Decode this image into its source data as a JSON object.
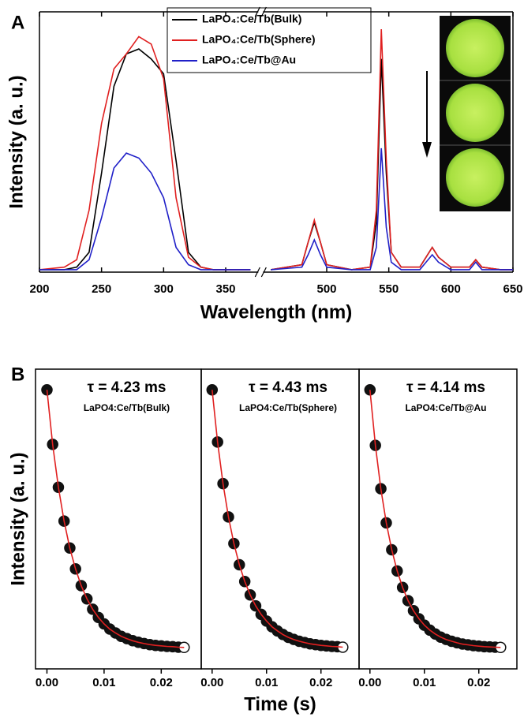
{
  "chart_data": [
    {
      "type": "line",
      "panel_label": "A",
      "x_label": "Wavelength (nm)",
      "y_label": "Intensity (a. u.)",
      "xlim": [
        200,
        650
      ],
      "xbreak": [
        375,
        450
      ],
      "xticks": [
        200,
        250,
        300,
        350,
        500,
        550,
        600,
        650
      ],
      "ylim": [
        0,
        105
      ],
      "x": [
        200,
        220,
        230,
        240,
        250,
        260,
        270,
        280,
        290,
        300,
        310,
        320,
        330,
        340,
        360,
        370,
        455,
        480,
        485,
        490,
        495,
        500,
        520,
        535,
        540,
        544,
        548,
        552,
        560,
        575,
        580,
        585,
        590,
        600,
        615,
        620,
        625,
        640,
        650
      ],
      "series": [
        {
          "name": "LaPO₄:Ce/Tb(Bulk)",
          "color": "#000000",
          "values": [
            1,
            1,
            2,
            8,
            40,
            75,
            88,
            90,
            86,
            80,
            45,
            8,
            2,
            1,
            1,
            1,
            1,
            3,
            12,
            20,
            12,
            3,
            1,
            2,
            20,
            86,
            40,
            8,
            2,
            2,
            6,
            10,
            6,
            2,
            2,
            5,
            2,
            1,
            1
          ]
        },
        {
          "name": "LaPO₄:Ce/Tb(Sphere)",
          "color": "#e02020",
          "values": [
            1,
            2,
            5,
            25,
            60,
            82,
            88,
            95,
            92,
            78,
            30,
            6,
            2,
            1,
            1,
            1,
            1,
            3,
            12,
            21,
            12,
            3,
            1,
            2,
            25,
            98,
            45,
            8,
            2,
            2,
            6,
            10,
            6,
            2,
            2,
            5,
            2,
            1,
            1
          ]
        },
        {
          "name": "LaPO₄:Ce/Tb@Au",
          "color": "#2020c8",
          "values": [
            1,
            1,
            1,
            5,
            22,
            42,
            48,
            46,
            40,
            30,
            10,
            3,
            1,
            1,
            1,
            1,
            1,
            2,
            7,
            13,
            7,
            2,
            1,
            1,
            10,
            50,
            18,
            4,
            1,
            1,
            4,
            7,
            4,
            1,
            1,
            4,
            1,
            1,
            1
          ]
        }
      ]
    },
    {
      "type": "scatter",
      "panel_label": "B",
      "y_label": "Intensity (a. u.)",
      "annotation": "τ = 4.23 ms",
      "sample": "LaPO4:Ce/Tb(Bulk)",
      "xlim": [
        -0.002,
        0.027
      ],
      "xticks": [
        {
          "value": 0,
          "label": "0.00"
        },
        {
          "value": 0.01,
          "label": "0.01"
        },
        {
          "value": 0.02,
          "label": "0.02"
        }
      ],
      "ylim": [
        -8,
        108
      ],
      "x": [
        0,
        0.001,
        0.002,
        0.003,
        0.004,
        0.005,
        0.006,
        0.007,
        0.008,
        0.009,
        0.01,
        0.011,
        0.012,
        0.013,
        0.014,
        0.015,
        0.016,
        0.017,
        0.018,
        0.019,
        0.02,
        0.021,
        0.022,
        0.023,
        0.024
      ],
      "series": [
        {
          "type": "scatter",
          "color": "#111111",
          "values": [
            100,
            78.9,
            62.3,
            49.2,
            38.8,
            30.7,
            24.2,
            19.1,
            15.1,
            11.9,
            9.4,
            7.4,
            5.9,
            4.6,
            3.7,
            2.9,
            2.3,
            1.8,
            1.4,
            1.1,
            0.9,
            0.7,
            0.6,
            0.4,
            0.3
          ]
        },
        {
          "type": "line",
          "color": "#e02020",
          "values": [
            100,
            78.9,
            62.3,
            49.2,
            38.8,
            30.7,
            24.2,
            19.1,
            15.1,
            11.9,
            9.4,
            7.4,
            5.9,
            4.6,
            3.7,
            2.9,
            2.3,
            1.8,
            1.4,
            1.1,
            0.9,
            0.7,
            0.6,
            0.4,
            0.3
          ]
        }
      ]
    },
    {
      "type": "scatter",
      "x_label": "Time (s)",
      "annotation": "τ = 4.43 ms",
      "sample": "LaPO4:Ce/Tb(Sphere)",
      "xlim": [
        -0.002,
        0.027
      ],
      "xticks": [
        {
          "value": 0,
          "label": "0.00"
        },
        {
          "value": 0.01,
          "label": "0.01"
        },
        {
          "value": 0.02,
          "label": "0.02"
        }
      ],
      "ylim": [
        -8,
        108
      ],
      "x": [
        0,
        0.001,
        0.002,
        0.003,
        0.004,
        0.005,
        0.006,
        0.007,
        0.008,
        0.009,
        0.01,
        0.011,
        0.012,
        0.013,
        0.014,
        0.015,
        0.016,
        0.017,
        0.018,
        0.019,
        0.02,
        0.021,
        0.022,
        0.023,
        0.024
      ],
      "series": [
        {
          "type": "scatter",
          "color": "#111111",
          "values": [
            100,
            79.8,
            63.7,
            50.8,
            40.5,
            32.3,
            25.8,
            20.6,
            16.4,
            13.1,
            10.5,
            8.3,
            6.7,
            5.3,
            4.2,
            3.4,
            2.7,
            2.2,
            1.7,
            1.4,
            1.1,
            0.9,
            0.7,
            0.6,
            0.4
          ]
        },
        {
          "type": "line",
          "color": "#e02020",
          "values": [
            100,
            79.8,
            63.7,
            50.8,
            40.5,
            32.3,
            25.8,
            20.6,
            16.4,
            13.1,
            10.5,
            8.3,
            6.7,
            5.3,
            4.2,
            3.4,
            2.7,
            2.2,
            1.7,
            1.4,
            1.1,
            0.9,
            0.7,
            0.6,
            0.4
          ]
        }
      ]
    },
    {
      "type": "scatter",
      "annotation": "τ = 4.14 ms",
      "sample": "LaPO4:Ce/Tb@Au",
      "xlim": [
        -0.002,
        0.027
      ],
      "xticks": [
        {
          "value": 0,
          "label": "0.00"
        },
        {
          "value": 0.01,
          "label": "0.01"
        },
        {
          "value": 0.02,
          "label": "0.02"
        }
      ],
      "ylim": [
        -8,
        108
      ],
      "x": [
        0,
        0.001,
        0.002,
        0.003,
        0.004,
        0.005,
        0.006,
        0.007,
        0.008,
        0.009,
        0.01,
        0.011,
        0.012,
        0.013,
        0.014,
        0.015,
        0.016,
        0.017,
        0.018,
        0.019,
        0.02,
        0.021,
        0.022,
        0.023,
        0.024
      ],
      "series": [
        {
          "type": "scatter",
          "color": "#111111",
          "values": [
            100,
            78.5,
            61.7,
            48.5,
            38.1,
            29.9,
            23.5,
            18.4,
            14.5,
            11.4,
            8.9,
            7.0,
            5.5,
            4.3,
            3.4,
            2.7,
            2.1,
            1.6,
            1.3,
            1.0,
            0.8,
            0.6,
            0.5,
            0.4,
            0.3
          ]
        },
        {
          "type": "line",
          "color": "#e02020",
          "values": [
            100,
            78.5,
            61.7,
            48.5,
            38.1,
            29.9,
            23.5,
            18.4,
            14.5,
            11.4,
            8.9,
            7.0,
            5.5,
            4.3,
            3.4,
            2.7,
            2.1,
            1.6,
            1.3,
            1.0,
            0.8,
            0.6,
            0.5,
            0.4,
            0.3
          ]
        }
      ]
    }
  ]
}
